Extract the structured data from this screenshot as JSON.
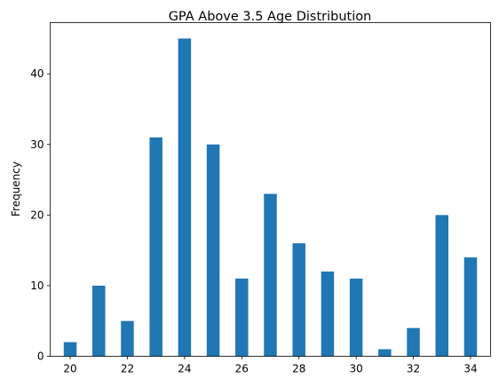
{
  "chart_data": {
    "type": "bar",
    "title": "GPA Above 3.5 Age Distribution",
    "xlabel": "",
    "ylabel": "Frequency",
    "x": [
      20,
      21,
      22,
      23,
      24,
      25,
      26,
      27,
      28,
      29,
      30,
      31,
      32,
      33,
      34
    ],
    "values": [
      2,
      10,
      5,
      31,
      45,
      30,
      11,
      23,
      16,
      12,
      11,
      1,
      4,
      20,
      14
    ],
    "xticks": [
      20,
      22,
      24,
      26,
      28,
      30,
      32,
      34
    ],
    "yticks": [
      0,
      10,
      20,
      30,
      40
    ],
    "xlim": [
      19.3,
      34.7
    ],
    "ylim": [
      0,
      47.25
    ],
    "bar_color": "#1f77b4",
    "grid": false,
    "legend": "none"
  }
}
